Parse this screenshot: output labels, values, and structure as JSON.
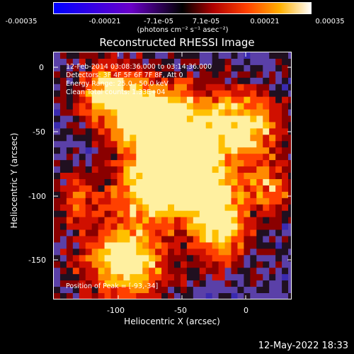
{
  "colorbar": {
    "ticks": [
      "-0.00035",
      "-0.00021",
      "-7.1e-05",
      "7.1e-05",
      "0.00021",
      "0.00035"
    ],
    "units": "(photons cm⁻² s⁻¹ asec⁻²)"
  },
  "plot": {
    "title": "Reconstructed RHESSI Image",
    "info_lines": [
      "12-Feb-2014 03:08:36.000 to 03:14:36.000",
      "Detectors: 3F 4F 5F 6F 7F 8F, Att 0",
      "Energy Range: 25.0 - 50.0 keV",
      "Clean    Total counts: 1.33E+04"
    ],
    "peak_text": "Position of Peak = [-93,-34]",
    "x_axis": {
      "title": "Heliocentric X (arcsec)",
      "ticks": [
        "-100",
        "-50",
        "0"
      ]
    },
    "y_axis": {
      "title": "Heliocentric Y (arcsec)",
      "ticks": [
        "0",
        "-50",
        "-100",
        "-150"
      ]
    }
  },
  "footer": {
    "timestamp": "12-May-2022 18:33"
  }
}
